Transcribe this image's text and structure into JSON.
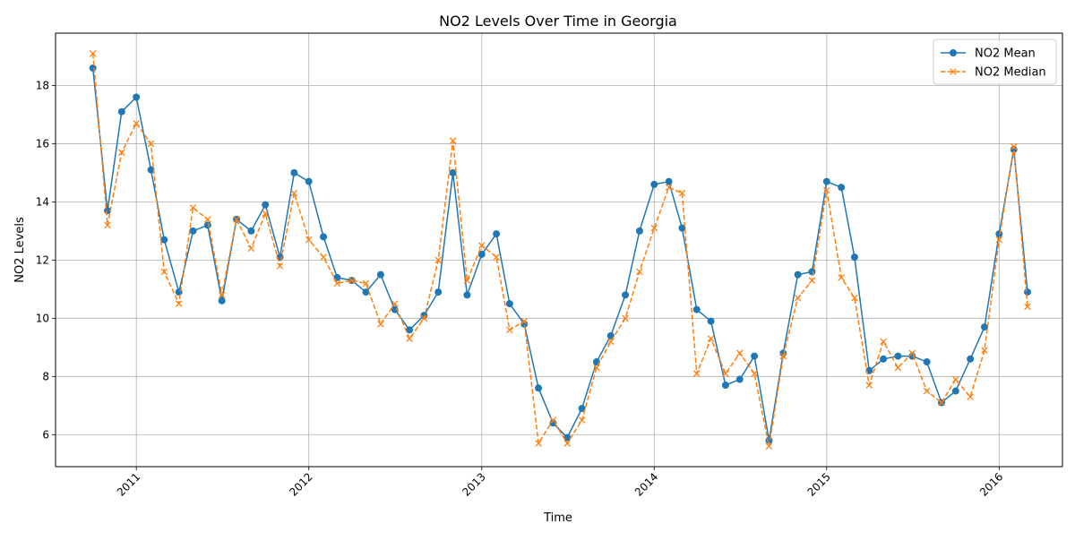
{
  "chart_data": {
    "type": "line",
    "title": "NO2 Levels Over Time in Georgia",
    "xlabel": "Time",
    "ylabel": "NO2 Levels",
    "x_ticks": [
      "2011",
      "2012",
      "2013",
      "2014",
      "2015",
      "2016"
    ],
    "y_ticks": [
      6,
      8,
      10,
      12,
      14,
      16,
      18
    ],
    "xlim": [
      "2010-07-14",
      "2016-05-14"
    ],
    "ylim": [
      4.9,
      19.8
    ],
    "grid": true,
    "legend_position": "top-right",
    "x": [
      "2010-10",
      "2010-11",
      "2010-12",
      "2011-01",
      "2011-02",
      "2011-03",
      "2011-04",
      "2011-05",
      "2011-06",
      "2011-07",
      "2011-08",
      "2011-09",
      "2011-10",
      "2011-11",
      "2011-12",
      "2012-01",
      "2012-02",
      "2012-03",
      "2012-04",
      "2012-05",
      "2012-06",
      "2012-07",
      "2012-08",
      "2012-09",
      "2012-10",
      "2012-11",
      "2012-12",
      "2013-01",
      "2013-02",
      "2013-03",
      "2013-04",
      "2013-05",
      "2013-06",
      "2013-07",
      "2013-08",
      "2013-09",
      "2013-10",
      "2013-11",
      "2013-12",
      "2014-01",
      "2014-02",
      "2014-03",
      "2014-04",
      "2014-05",
      "2014-06",
      "2014-07",
      "2014-08",
      "2014-09",
      "2014-10",
      "2014-11",
      "2014-12",
      "2015-01",
      "2015-02",
      "2015-03",
      "2015-04",
      "2015-05",
      "2015-06",
      "2015-07",
      "2015-08",
      "2015-09",
      "2015-10",
      "2015-11",
      "2015-12",
      "2016-01",
      "2016-02",
      "2016-03"
    ],
    "series": [
      {
        "name": "NO2 Mean",
        "color": "#1f77b4",
        "style": "solid",
        "marker": "circle",
        "values": [
          18.6,
          13.7,
          17.1,
          17.6,
          15.1,
          12.7,
          10.9,
          13.0,
          13.2,
          10.6,
          13.4,
          13.0,
          13.9,
          12.1,
          15.0,
          14.7,
          12.8,
          11.4,
          11.3,
          10.9,
          11.5,
          10.3,
          9.6,
          10.1,
          10.9,
          15.0,
          10.8,
          12.2,
          12.9,
          10.5,
          9.8,
          7.6,
          6.4,
          5.9,
          6.9,
          8.5,
          9.4,
          10.8,
          13.0,
          14.6,
          14.7,
          13.1,
          10.3,
          9.9,
          7.7,
          7.9,
          8.7,
          5.8,
          8.8,
          11.5,
          11.6,
          14.7,
          14.5,
          12.1,
          8.2,
          8.6,
          8.7,
          8.7,
          8.5,
          7.1,
          7.5,
          8.6,
          9.7,
          12.9,
          15.8,
          10.9
        ]
      },
      {
        "name": "NO2 Median",
        "color": "#ff7f0e",
        "style": "dashed",
        "marker": "x",
        "values": [
          19.1,
          13.2,
          15.7,
          16.7,
          16.0,
          11.6,
          10.5,
          13.8,
          13.4,
          10.8,
          13.4,
          12.4,
          13.6,
          11.8,
          14.3,
          12.7,
          12.1,
          11.2,
          11.3,
          11.2,
          9.8,
          10.5,
          9.3,
          10.0,
          12.0,
          16.1,
          11.3,
          12.5,
          12.1,
          9.6,
          9.9,
          5.7,
          6.5,
          5.7,
          6.5,
          8.3,
          9.2,
          10.0,
          11.6,
          13.1,
          14.5,
          14.3,
          8.1,
          9.3,
          8.1,
          8.8,
          8.1,
          5.6,
          8.7,
          10.7,
          11.3,
          14.4,
          11.4,
          10.7,
          7.7,
          9.2,
          8.3,
          8.8,
          7.5,
          7.1,
          7.9,
          7.3,
          8.9,
          12.7,
          15.9,
          10.4
        ]
      }
    ]
  }
}
